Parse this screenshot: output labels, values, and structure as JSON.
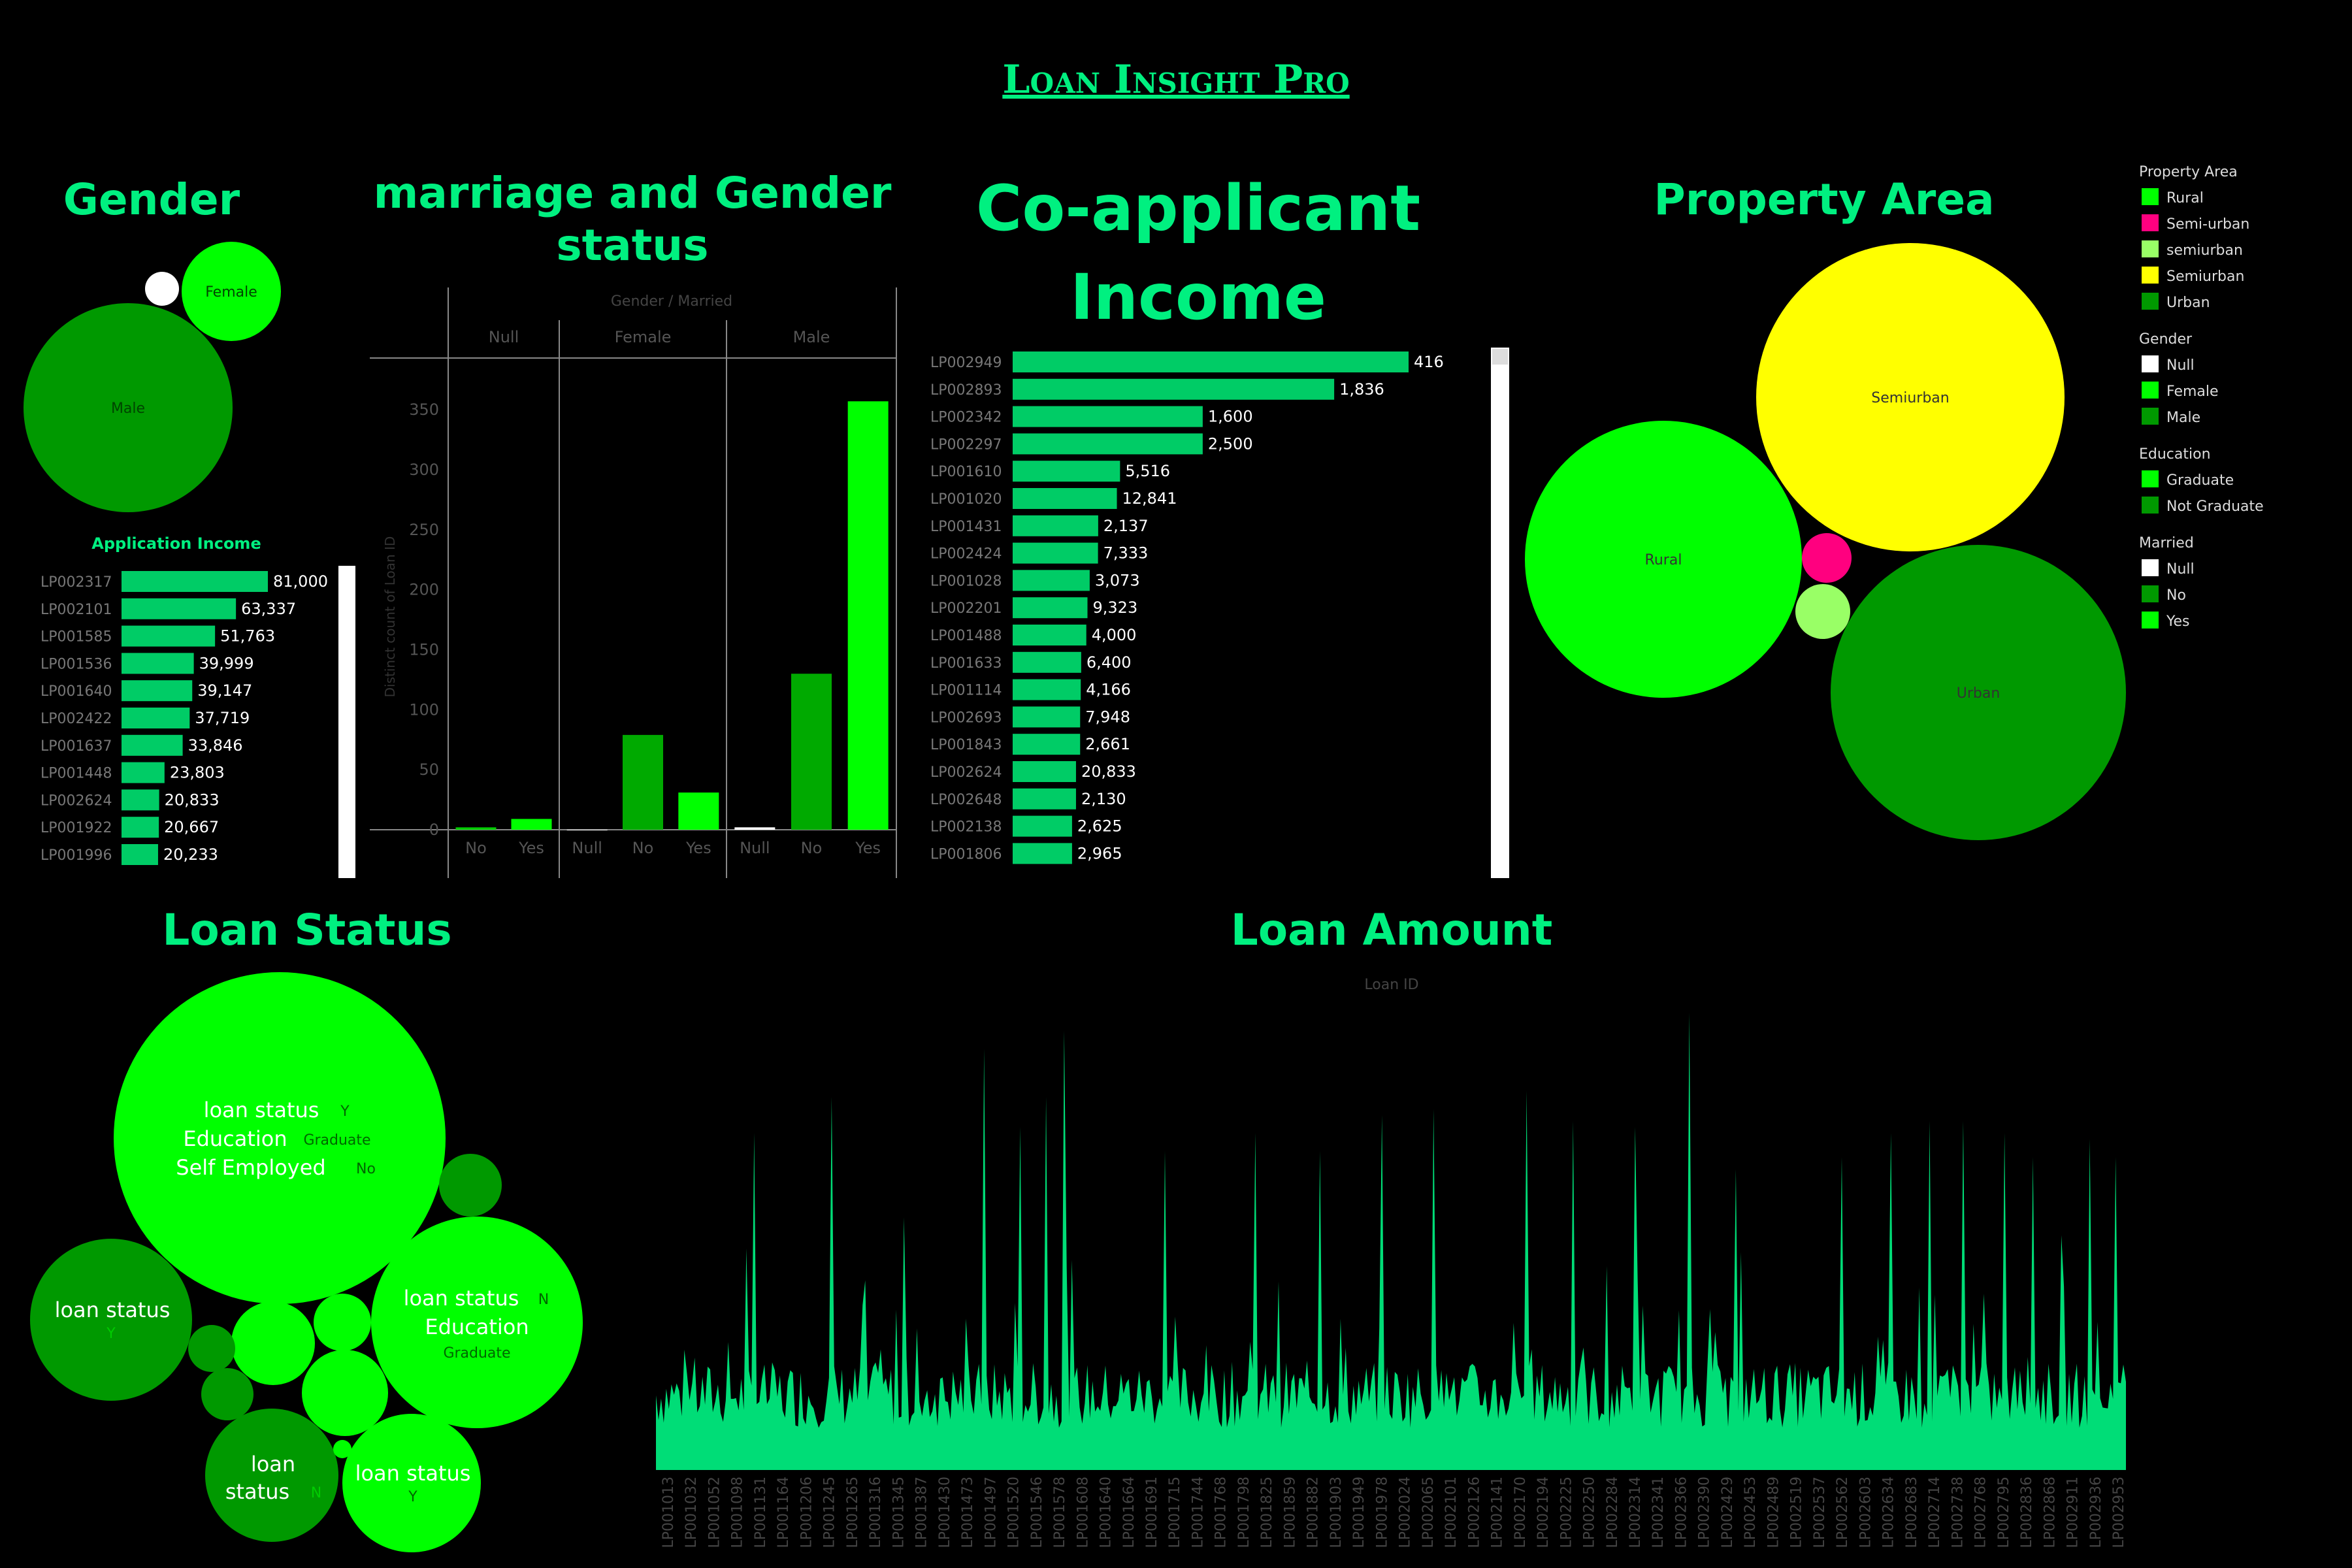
{
  "dashboard": {
    "title": "Loan Insight Pro",
    "colors": {
      "background": "#000000",
      "accent": "#00f080",
      "bar": "#00cc66",
      "green": "#00ff00",
      "dark_green": "#009900",
      "yellow": "#ffff00",
      "pink": "#ff007f",
      "light_green": "#99ff66"
    }
  },
  "gender": {
    "title": "Gender",
    "bubbles": [
      {
        "label": "Male",
        "value": 489,
        "color": "#009900"
      },
      {
        "label": "Female",
        "value": 112,
        "color": "#00ff00"
      },
      {
        "label": "",
        "value": 13,
        "color": "#ffffff"
      }
    ]
  },
  "application_income": {
    "title": "Application Income",
    "rows": [
      {
        "id": "LP002317",
        "value": 81000,
        "label": "81,000"
      },
      {
        "id": "LP002101",
        "value": 63337,
        "label": "63,337"
      },
      {
        "id": "LP001585",
        "value": 51763,
        "label": "51,763"
      },
      {
        "id": "LP001536",
        "value": 39999,
        "label": "39,999"
      },
      {
        "id": "LP001640",
        "value": 39147,
        "label": "39,147"
      },
      {
        "id": "LP002422",
        "value": 37719,
        "label": "37,719"
      },
      {
        "id": "LP001637",
        "value": 33846,
        "label": "33,846"
      },
      {
        "id": "LP001448",
        "value": 23803,
        "label": "23,803"
      },
      {
        "id": "LP002624",
        "value": 20833,
        "label": "20,833"
      },
      {
        "id": "LP001922",
        "value": 20667,
        "label": "20,667"
      },
      {
        "id": "LP001996",
        "value": 20233,
        "label": "20,233"
      }
    ]
  },
  "marriage_gender": {
    "title_line1": "marriage and Gender",
    "title_line2": "status",
    "header": "Gender / Married",
    "ylabel": "Distinct count of Loan ID",
    "yticks": [
      0,
      50,
      100,
      150,
      200,
      250,
      300,
      350
    ],
    "ylim": [
      0,
      380
    ],
    "groups": [
      {
        "name": "Null",
        "bars": [
          {
            "label": "No",
            "value": 2,
            "color": "#00cc00"
          },
          {
            "label": "Yes",
            "value": 9,
            "color": "#00ff00"
          }
        ]
      },
      {
        "name": "Female",
        "bars": [
          {
            "label": "Null",
            "value": 0,
            "color": "#ffffff"
          },
          {
            "label": "No",
            "value": 79,
            "color": "#00aa00"
          },
          {
            "label": "Yes",
            "value": 31,
            "color": "#00ff00"
          }
        ]
      },
      {
        "name": "Male",
        "bars": [
          {
            "label": "Null",
            "value": 2,
            "color": "#ffffff"
          },
          {
            "label": "No",
            "value": 130,
            "color": "#00aa00"
          },
          {
            "label": "Yes",
            "value": 357,
            "color": "#00ff00"
          }
        ]
      }
    ]
  },
  "coapplicant_income": {
    "title_line1": "Co-applicant",
    "title_line2": "Income",
    "rows": [
      {
        "id": "LP002949",
        "value": 41667,
        "label": "416"
      },
      {
        "id": "LP002893",
        "value": 33837,
        "label": "1,836"
      },
      {
        "id": "LP002342",
        "value": 20000,
        "label": "1,600"
      },
      {
        "id": "LP002297",
        "value": 20000,
        "label": "2,500"
      },
      {
        "id": "LP001610",
        "value": 11300,
        "label": "5,516"
      },
      {
        "id": "LP001020",
        "value": 10968,
        "label": "12,841"
      },
      {
        "id": "LP001431",
        "value": 9000,
        "label": "2,137"
      },
      {
        "id": "LP002424",
        "value": 8980,
        "label": "7,333"
      },
      {
        "id": "LP001028",
        "value": 8106,
        "label": "3,073"
      },
      {
        "id": "LP002201",
        "value": 7873,
        "label": "9,323"
      },
      {
        "id": "LP001488",
        "value": 7750,
        "label": "4,000"
      },
      {
        "id": "LP001633",
        "value": 7210,
        "label": "6,400"
      },
      {
        "id": "LP001114",
        "value": 7166,
        "label": "4,166"
      },
      {
        "id": "LP002693",
        "value": 7101,
        "label": "7,948"
      },
      {
        "id": "LP001843",
        "value": 7101,
        "label": "2,661"
      },
      {
        "id": "LP002624",
        "value": 6666,
        "label": "20,833"
      },
      {
        "id": "LP002648",
        "value": 6666,
        "label": "2,130"
      },
      {
        "id": "LP002138",
        "value": 6250,
        "label": "2,625"
      },
      {
        "id": "LP001806",
        "value": 6250,
        "label": "2,965"
      }
    ]
  },
  "property_area": {
    "title": "Property Area",
    "bubbles": [
      {
        "label": "Semiurban",
        "value": 233,
        "color": "#ffff00"
      },
      {
        "label": "Urban",
        "value": 202,
        "color": "#009900"
      },
      {
        "label": "Rural",
        "value": 179,
        "color": "#00ff00"
      },
      {
        "label": "",
        "value": 5,
        "color": "#ff007f"
      },
      {
        "label": "",
        "value": 5,
        "color": "#99ff66"
      }
    ]
  },
  "legend": {
    "sections": [
      {
        "title": "Property Area",
        "items": [
          {
            "label": "Rural",
            "color": "#00ff00"
          },
          {
            "label": "Semi-urban",
            "color": "#ff007f"
          },
          {
            "label": "semiurban",
            "color": "#99ff66"
          },
          {
            "label": "Semiurban",
            "color": "#ffff00"
          },
          {
            "label": "Urban",
            "color": "#009900"
          }
        ]
      },
      {
        "title": "Gender",
        "items": [
          {
            "label": "Null",
            "color": "#ffffff"
          },
          {
            "label": "Female",
            "color": "#00ff00"
          },
          {
            "label": "Male",
            "color": "#009900"
          }
        ]
      },
      {
        "title": "Education",
        "items": [
          {
            "label": "Graduate",
            "color": "#00ff00"
          },
          {
            "label": "Not Graduate",
            "color": "#009900"
          }
        ]
      },
      {
        "title": "Married",
        "items": [
          {
            "label": "Null",
            "color": "#ffffff"
          },
          {
            "label": "No",
            "color": "#009900"
          },
          {
            "label": "Yes",
            "color": "#00ff00"
          }
        ]
      }
    ]
  },
  "loan_status": {
    "title": "Loan Status",
    "field_names": {
      "loan_status": "loan status",
      "education": "Education",
      "self_employed": "Self Employed"
    },
    "bubbles": [
      {
        "value": 332,
        "color": "#00ff00",
        "fields": [
          {
            "name": "loan status",
            "value": "Y"
          },
          {
            "name": "Education",
            "value": "Graduate"
          },
          {
            "name": "Self Employed",
            "value": "No"
          }
        ]
      },
      {
        "value": 140,
        "color": "#00ff00",
        "fields": [
          {
            "name": "loan status",
            "value": "N"
          },
          {
            "name": "Education",
            "value": "Graduate"
          }
        ]
      },
      {
        "value": 82,
        "color": "#009900",
        "fields": [
          {
            "name": "loan status",
            "value": "Y"
          }
        ]
      },
      {
        "value": 51,
        "color": "#00ff00",
        "fields": [
          {
            "name": "loan status",
            "value": "Y"
          }
        ]
      },
      {
        "value": 50,
        "color": "#009900",
        "fields": [
          {
            "name": "loan status",
            "value": "N"
          }
        ]
      },
      {
        "value": 20,
        "color": "#00ff00",
        "fields": []
      },
      {
        "value": 20,
        "color": "#00ff00",
        "fields": []
      },
      {
        "value": 10,
        "color": "#009900",
        "fields": []
      },
      {
        "value": 9,
        "color": "#00ff00",
        "fields": []
      },
      {
        "value": 6,
        "color": "#009900",
        "fields": []
      },
      {
        "value": 5,
        "color": "#009900",
        "fields": []
      },
      {
        "value": 1,
        "color": "#00ff00",
        "fields": []
      }
    ]
  },
  "chart_data": [
    {
      "type": "bar",
      "title": "Application Income",
      "orientation": "horizontal",
      "categories": [
        "LP002317",
        "LP002101",
        "LP001585",
        "LP001536",
        "LP001640",
        "LP002422",
        "LP001637",
        "LP001448",
        "LP002624",
        "LP001922",
        "LP001996"
      ],
      "values": [
        81000,
        63337,
        51763,
        39999,
        39147,
        37719,
        33846,
        23803,
        20833,
        20667,
        20233
      ]
    },
    {
      "type": "bar",
      "title": "marriage and Gender status",
      "xlabel": "Gender / Married",
      "ylabel": "Distinct count of Loan ID",
      "ylim": [
        0,
        380
      ],
      "series": [
        {
          "name": "Null",
          "categories": [
            "No",
            "Yes"
          ],
          "values": [
            2,
            9
          ]
        },
        {
          "name": "Female",
          "categories": [
            "Null",
            "No",
            "Yes"
          ],
          "values": [
            0,
            79,
            31
          ]
        },
        {
          "name": "Male",
          "categories": [
            "Null",
            "No",
            "Yes"
          ],
          "values": [
            2,
            130,
            357
          ]
        }
      ]
    },
    {
      "type": "area",
      "title": "Loan Amount",
      "xlabel": "Loan ID",
      "x_tick_labels": [
        "LP001013",
        "LP001032",
        "LP001052",
        "LP001098",
        "LP001131",
        "LP001164",
        "LP001206",
        "LP001245",
        "LP001265",
        "LP001316",
        "LP001345",
        "LP001387",
        "LP001430",
        "LP001473",
        "LP001497",
        "LP001520",
        "LP001546",
        "LP001578",
        "LP001608",
        "LP001640",
        "LP001664",
        "LP001691",
        "LP001715",
        "LP001744",
        "LP001768",
        "LP001798",
        "LP001825",
        "LP001859",
        "LP001882",
        "LP001903",
        "LP001949",
        "LP001978",
        "LP002024",
        "LP002065",
        "LP002101",
        "LP002126",
        "LP002141",
        "LP002170",
        "LP002194",
        "LP002225",
        "LP002250",
        "LP002284",
        "LP002314",
        "LP002341",
        "LP002366",
        "LP002390",
        "LP002429",
        "LP002453",
        "LP002489",
        "LP002519",
        "LP002537",
        "LP002562",
        "LP002603",
        "LP002634",
        "LP002683",
        "LP002714",
        "LP002738",
        "LP002768",
        "LP002795",
        "LP002836",
        "LP002868",
        "LP002911",
        "LP002936",
        "LP002953"
      ],
      "values": []
    }
  ]
}
